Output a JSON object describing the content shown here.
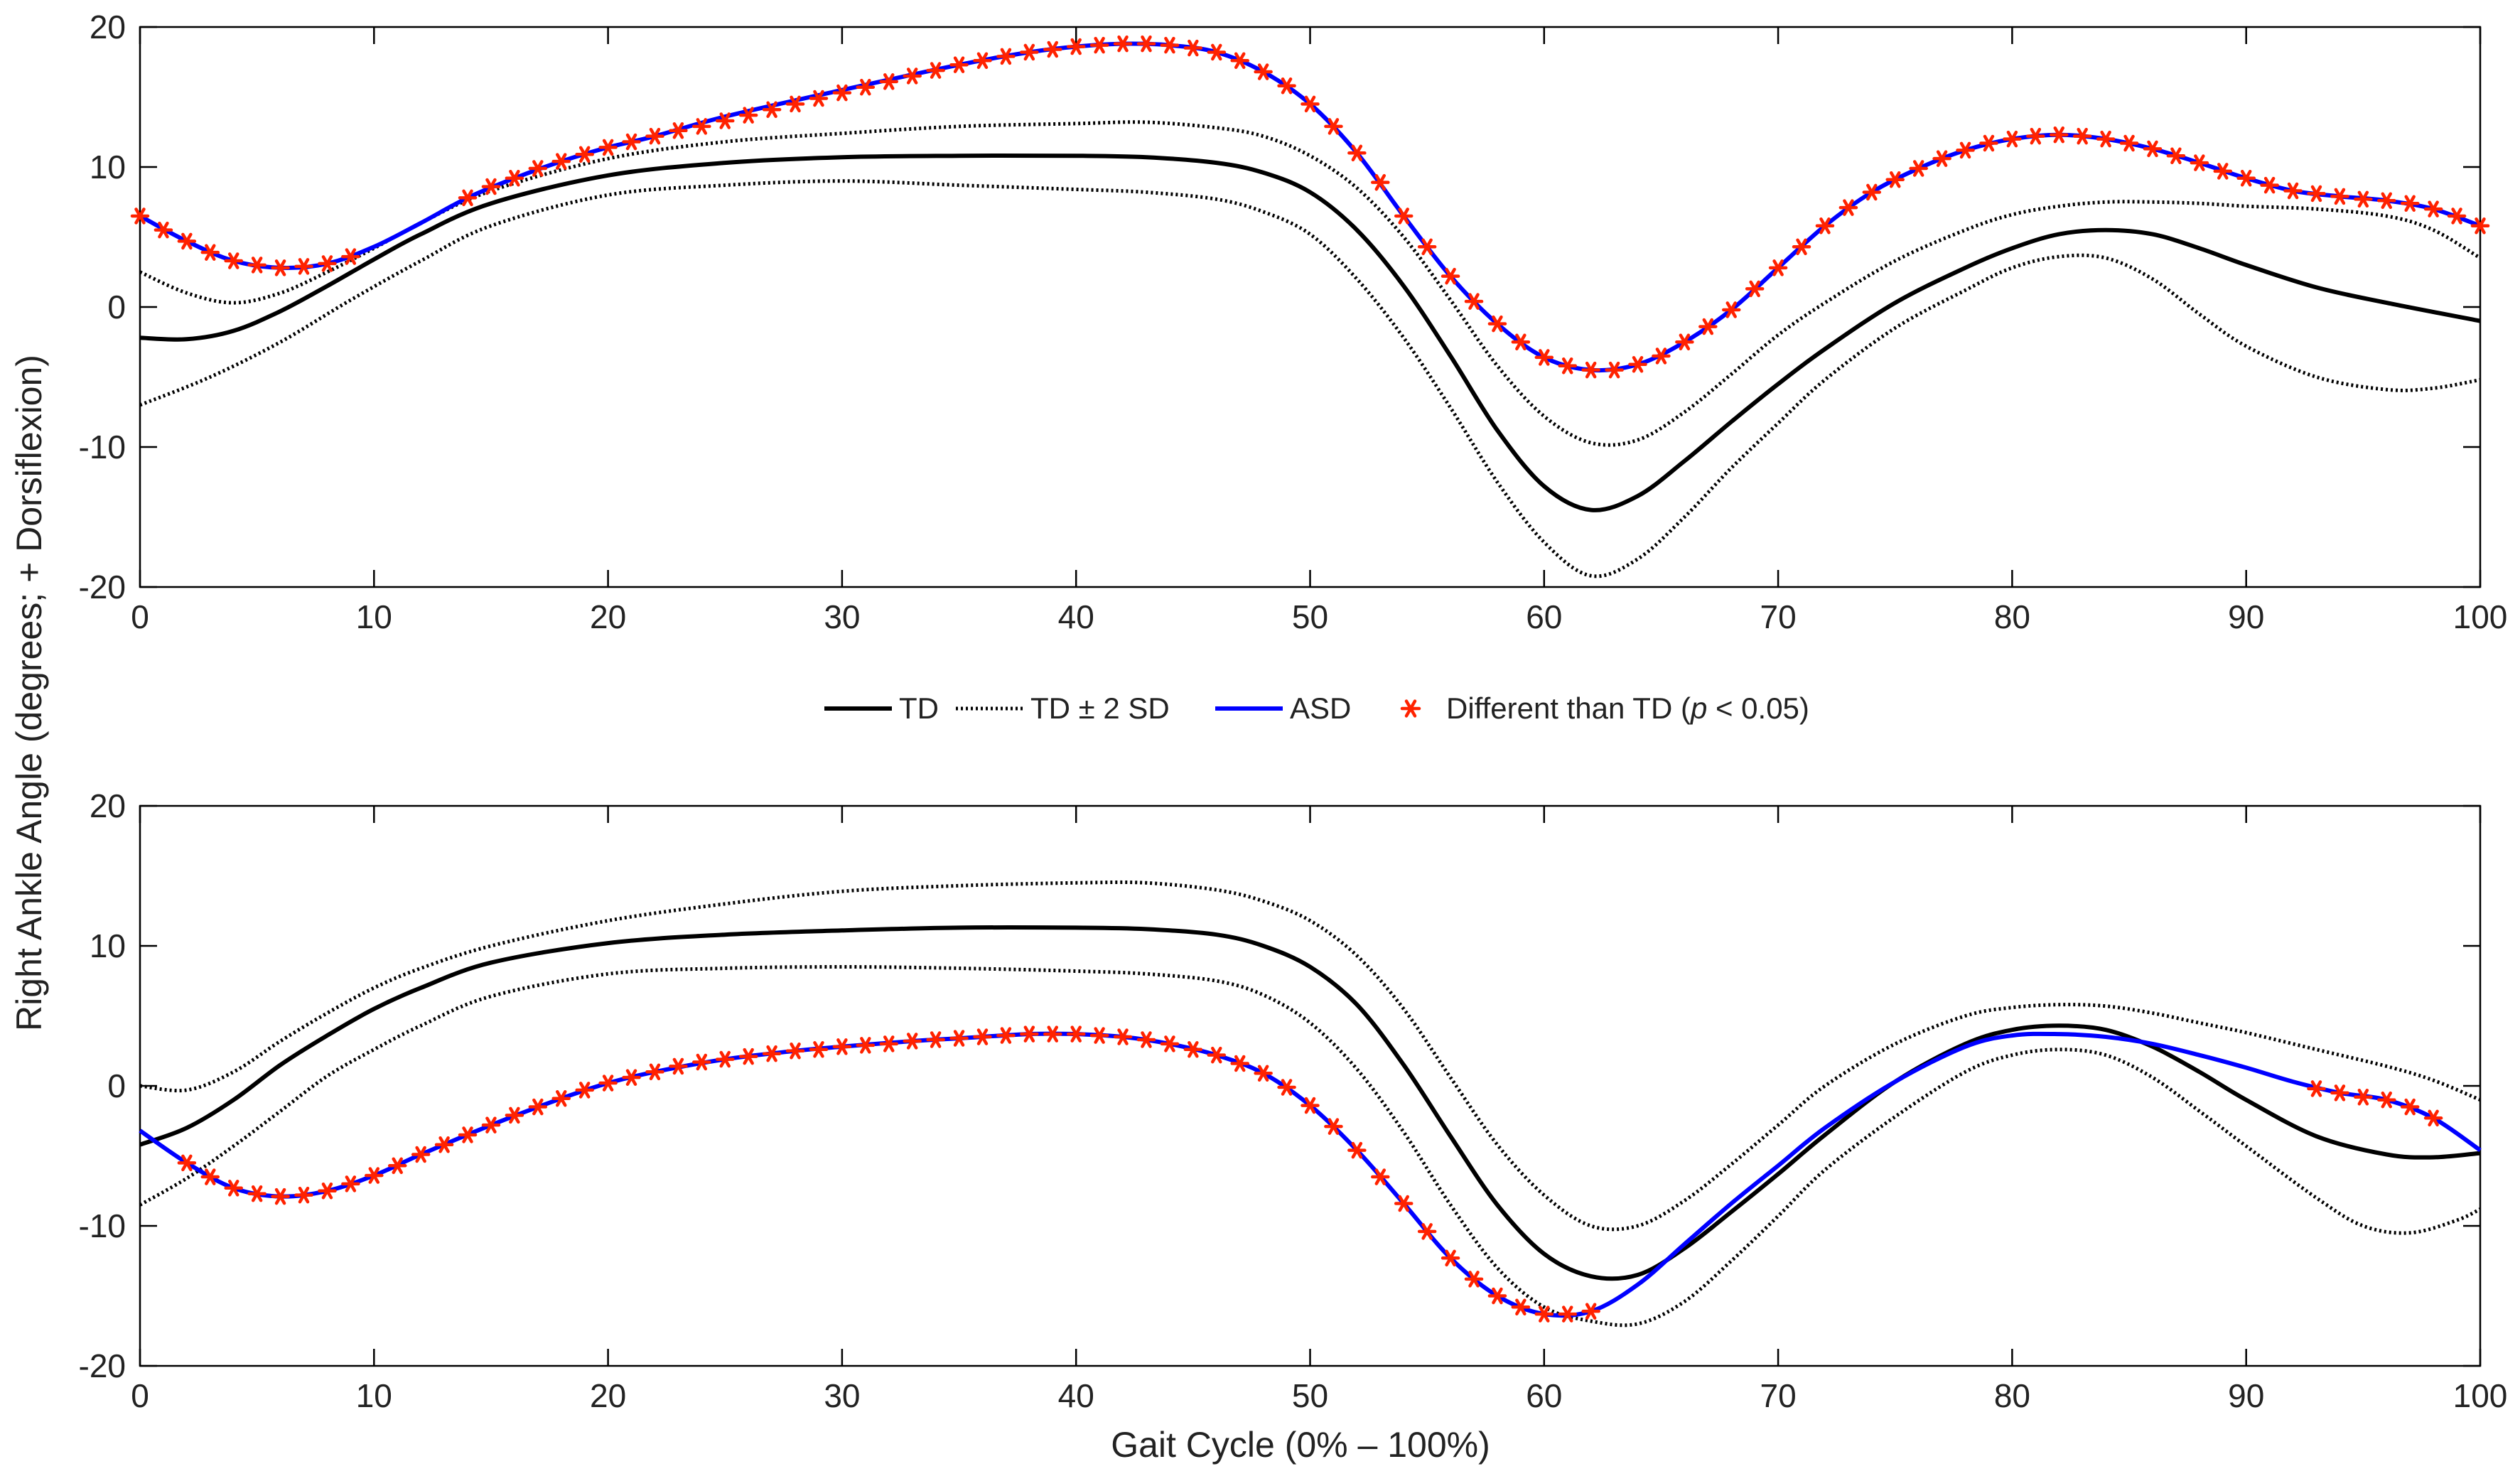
{
  "figure": {
    "ylabel": "Right Ankle Angle (degrees; + Dorsiflexion)",
    "xlabel": "Gait Cycle (0% – 100%)"
  },
  "legend": {
    "td_label": "TD",
    "sd_label": "TD ± 2 SD",
    "asd_label": "ASD",
    "diff_prefix": "Different than TD (",
    "diff_p": "p",
    "diff_suffix": " < 0.05)"
  },
  "colors": {
    "td": "#000000",
    "asd": "#0000ff",
    "marker": "#ff2200"
  },
  "chart_data": [
    {
      "type": "line",
      "panel": "top",
      "xlim": [
        0,
        100
      ],
      "ylim": [
        -20,
        20
      ],
      "xticks": [
        0,
        10,
        20,
        30,
        40,
        50,
        60,
        70,
        80,
        90,
        100
      ],
      "yticks": [
        -20,
        -10,
        0,
        10,
        20
      ],
      "series": [
        {
          "name": "TD",
          "style": "solid",
          "x": [
            0,
            2,
            4,
            6,
            8,
            10,
            12,
            15,
            20,
            25,
            30,
            35,
            40,
            43,
            46,
            48,
            50,
            52,
            54,
            56,
            58,
            60,
            62,
            64,
            66,
            68,
            70,
            72,
            75,
            78,
            80,
            82,
            84,
            86,
            88,
            90,
            93,
            96,
            100
          ],
          "y": [
            -2.2,
            -2.3,
            -1.7,
            -0.3,
            1.5,
            3.4,
            5.2,
            7.4,
            9.4,
            10.3,
            10.7,
            10.8,
            10.8,
            10.7,
            10.3,
            9.6,
            8.2,
            5.5,
            1.5,
            -3.5,
            -8.8,
            -12.8,
            -14.5,
            -13.5,
            -11.0,
            -8.2,
            -5.5,
            -3.0,
            0.3,
            2.8,
            4.2,
            5.2,
            5.5,
            5.2,
            4.2,
            3.0,
            1.4,
            0.3,
            -1.0
          ]
        },
        {
          "name": "TD + 2 SD",
          "style": "dotted",
          "x": [
            0,
            2,
            4,
            6,
            8,
            10,
            12,
            15,
            20,
            25,
            30,
            35,
            40,
            43,
            46,
            48,
            50,
            52,
            54,
            56,
            58,
            60,
            62,
            64,
            66,
            68,
            70,
            72,
            75,
            78,
            80,
            82,
            84,
            86,
            88,
            90,
            93,
            96,
            98,
            100
          ],
          "y": [
            2.5,
            1.0,
            0.3,
            1.0,
            2.5,
            4.2,
            6.0,
            8.3,
            10.6,
            11.8,
            12.4,
            12.9,
            13.1,
            13.2,
            12.8,
            12.2,
            10.8,
            8.5,
            5.0,
            0.5,
            -4.2,
            -7.8,
            -9.7,
            -9.5,
            -7.5,
            -4.8,
            -2.0,
            0.3,
            3.3,
            5.5,
            6.6,
            7.2,
            7.5,
            7.5,
            7.4,
            7.2,
            7.0,
            6.5,
            5.5,
            3.5
          ]
        },
        {
          "name": "TD - 2 SD",
          "style": "dotted",
          "x": [
            0,
            3,
            6,
            9,
            12,
            15,
            20,
            25,
            30,
            35,
            40,
            43,
            46,
            48,
            50,
            52,
            54,
            56,
            58,
            60,
            62,
            64,
            66,
            68,
            70,
            72,
            75,
            78,
            80,
            82,
            84,
            86,
            88,
            90,
            93,
            96,
            98,
            100
          ],
          "y": [
            -7.0,
            -5.0,
            -2.5,
            0.5,
            3.3,
            5.8,
            8.0,
            8.7,
            9.0,
            8.7,
            8.4,
            8.2,
            7.7,
            6.8,
            5.2,
            2.0,
            -2.2,
            -7.2,
            -12.5,
            -16.8,
            -19.2,
            -18.0,
            -15.0,
            -11.5,
            -8.3,
            -5.2,
            -1.5,
            1.2,
            2.8,
            3.6,
            3.5,
            2.0,
            -0.5,
            -2.8,
            -5.0,
            -5.9,
            -5.8,
            -5.2
          ]
        },
        {
          "name": "ASD",
          "style": "solid",
          "x": [
            0,
            2,
            4,
            6,
            8,
            10,
            12,
            14,
            16,
            18,
            20,
            22,
            25,
            30,
            35,
            38,
            40,
            42,
            44,
            46,
            48,
            50,
            52,
            54,
            56,
            58,
            60,
            62,
            64,
            66,
            68,
            70,
            72,
            74,
            76,
            78,
            80,
            82,
            84,
            86,
            88,
            90,
            92,
            94,
            96,
            98,
            100
          ],
          "y": [
            6.5,
            4.7,
            3.3,
            2.8,
            3.1,
            4.3,
            6.0,
            7.8,
            9.2,
            10.4,
            11.4,
            12.2,
            13.6,
            15.5,
            17.3,
            18.2,
            18.6,
            18.8,
            18.7,
            18.2,
            16.8,
            14.5,
            11.0,
            6.5,
            2.2,
            -1.2,
            -3.6,
            -4.5,
            -4.1,
            -2.5,
            -0.2,
            2.8,
            5.8,
            8.2,
            9.9,
            11.2,
            12.0,
            12.3,
            12.0,
            11.3,
            10.3,
            9.2,
            8.3,
            7.9,
            7.6,
            7.0,
            5.8
          ]
        },
        {
          "name": "Different than TD (p < 0.05)",
          "style": "marker",
          "x": [
            0,
            1,
            2,
            3,
            4,
            5,
            6,
            7,
            8,
            9,
            14,
            15,
            16,
            17,
            18,
            19,
            20,
            21,
            22,
            23,
            24,
            25,
            26,
            27,
            28,
            29,
            30,
            31,
            32,
            33,
            34,
            35,
            36,
            37,
            38,
            39,
            40,
            41,
            42,
            43,
            44,
            45,
            46,
            47,
            48,
            49,
            50,
            51,
            52,
            53,
            54,
            55,
            56,
            57,
            58,
            59,
            60,
            61,
            62,
            63,
            64,
            65,
            66,
            67,
            68,
            69,
            70,
            71,
            72,
            73,
            74,
            75,
            76,
            77,
            78,
            79,
            80,
            81,
            82,
            83,
            84,
            85,
            86,
            87,
            88,
            89,
            90,
            91,
            92,
            93,
            94,
            95,
            96,
            97,
            98,
            99,
            100
          ],
          "y": [
            6.5,
            5.5,
            4.7,
            3.9,
            3.3,
            3.0,
            2.8,
            2.9,
            3.1,
            3.6,
            7.8,
            8.6,
            9.2,
            9.9,
            10.4,
            10.9,
            11.4,
            11.8,
            12.2,
            12.6,
            12.9,
            13.3,
            13.7,
            14.1,
            14.5,
            14.9,
            15.3,
            15.7,
            16.1,
            16.5,
            16.9,
            17.3,
            17.6,
            17.9,
            18.2,
            18.4,
            18.6,
            18.7,
            18.8,
            18.8,
            18.7,
            18.5,
            18.2,
            17.6,
            16.8,
            15.8,
            14.5,
            12.9,
            11.0,
            8.9,
            6.5,
            4.3,
            2.2,
            0.4,
            -1.2,
            -2.5,
            -3.6,
            -4.2,
            -4.5,
            -4.5,
            -4.1,
            -3.5,
            -2.5,
            -1.4,
            -0.2,
            1.3,
            2.8,
            4.3,
            5.8,
            7.1,
            8.2,
            9.1,
            9.9,
            10.6,
            11.2,
            11.7,
            12.0,
            12.2,
            12.3,
            12.2,
            12.0,
            11.7,
            11.3,
            10.8,
            10.3,
            9.7,
            9.2,
            8.7,
            8.3,
            8.1,
            7.9,
            7.7,
            7.6,
            7.4,
            7.0,
            6.5,
            5.8
          ]
        }
      ]
    },
    {
      "type": "line",
      "panel": "bottom",
      "xlim": [
        0,
        100
      ],
      "ylim": [
        -20,
        20
      ],
      "xticks": [
        0,
        10,
        20,
        30,
        40,
        50,
        60,
        70,
        80,
        90,
        100
      ],
      "yticks": [
        -20,
        -10,
        0,
        10,
        20
      ],
      "series": [
        {
          "name": "TD",
          "style": "solid",
          "x": [
            0,
            2,
            4,
            6,
            8,
            10,
            12,
            15,
            20,
            25,
            30,
            35,
            40,
            43,
            46,
            48,
            50,
            52,
            54,
            56,
            58,
            60,
            62,
            64,
            66,
            68,
            70,
            72,
            75,
            78,
            80,
            82,
            84,
            86,
            88,
            90,
            93,
            96,
            98,
            100
          ],
          "y": [
            -4.2,
            -3.0,
            -1.0,
            1.5,
            3.6,
            5.5,
            7.0,
            8.8,
            10.2,
            10.8,
            11.1,
            11.3,
            11.3,
            11.2,
            10.8,
            10.0,
            8.5,
            5.8,
            1.5,
            -3.6,
            -8.5,
            -12.0,
            -13.6,
            -13.5,
            -11.6,
            -9.0,
            -6.3,
            -3.5,
            0.3,
            3.0,
            4.0,
            4.3,
            4.0,
            2.8,
            1.0,
            -1.0,
            -3.6,
            -4.9,
            -5.1,
            -4.8
          ]
        },
        {
          "name": "TD + 2 SD",
          "style": "dotted",
          "x": [
            0,
            2,
            4,
            6,
            8,
            10,
            12,
            15,
            20,
            25,
            30,
            35,
            40,
            43,
            46,
            48,
            50,
            52,
            54,
            56,
            58,
            60,
            62,
            64,
            66,
            68,
            70,
            72,
            75,
            78,
            80,
            82,
            84,
            86,
            88,
            90,
            93,
            96,
            98,
            100
          ],
          "y": [
            0.0,
            -0.3,
            1.0,
            3.2,
            5.2,
            7.0,
            8.4,
            10.0,
            11.8,
            13.0,
            13.9,
            14.3,
            14.5,
            14.5,
            14.0,
            13.2,
            11.8,
            9.3,
            5.5,
            0.6,
            -4.2,
            -7.8,
            -10.0,
            -10.0,
            -8.2,
            -5.6,
            -2.8,
            0.0,
            3.0,
            5.0,
            5.6,
            5.8,
            5.7,
            5.2,
            4.5,
            3.8,
            2.6,
            1.4,
            0.4,
            -1.0
          ]
        },
        {
          "name": "TD - 2 SD",
          "style": "dotted",
          "x": [
            0,
            2,
            4,
            6,
            8,
            10,
            12,
            15,
            20,
            25,
            30,
            35,
            40,
            43,
            46,
            48,
            50,
            52,
            54,
            56,
            58,
            60,
            62,
            64,
            66,
            68,
            70,
            72,
            75,
            78,
            80,
            82,
            84,
            86,
            88,
            90,
            93,
            95,
            97,
            99,
            100
          ],
          "y": [
            -8.5,
            -6.6,
            -4.3,
            -1.8,
            0.7,
            2.6,
            4.3,
            6.4,
            8.0,
            8.4,
            8.5,
            8.4,
            8.2,
            8.0,
            7.5,
            6.5,
            4.5,
            1.2,
            -3.3,
            -8.5,
            -13.0,
            -15.8,
            -16.8,
            -17.0,
            -15.4,
            -12.5,
            -9.3,
            -6.0,
            -2.2,
            1.0,
            2.2,
            2.6,
            2.2,
            0.6,
            -1.8,
            -4.3,
            -8.0,
            -10.0,
            -10.5,
            -9.6,
            -8.8
          ]
        },
        {
          "name": "ASD",
          "style": "solid",
          "x": [
            0,
            2,
            4,
            6,
            8,
            10,
            12,
            15,
            18,
            20,
            22,
            25,
            28,
            30,
            33,
            35,
            38,
            40,
            42,
            44,
            46,
            48,
            50,
            52,
            54,
            56,
            58,
            60,
            62,
            64,
            66,
            68,
            70,
            72,
            75,
            78,
            80,
            82,
            84,
            86,
            88,
            90,
            92,
            94,
            96,
            98,
            100
          ],
          "y": [
            -3.2,
            -5.5,
            -7.3,
            -7.9,
            -7.5,
            -6.4,
            -4.9,
            -2.8,
            -0.9,
            0.2,
            1.0,
            1.9,
            2.5,
            2.8,
            3.2,
            3.4,
            3.7,
            3.7,
            3.5,
            3.0,
            2.2,
            0.9,
            -1.4,
            -4.6,
            -8.4,
            -12.3,
            -15.0,
            -16.3,
            -16.1,
            -14.2,
            -11.3,
            -8.4,
            -5.7,
            -3.0,
            0.3,
            2.8,
            3.6,
            3.7,
            3.5,
            3.0,
            2.2,
            1.3,
            0.3,
            -0.5,
            -1.0,
            -2.3,
            -4.6
          ]
        },
        {
          "name": "Different than TD (p < 0.05)",
          "style": "marker",
          "x": [
            2,
            3,
            4,
            5,
            6,
            7,
            8,
            9,
            10,
            11,
            12,
            13,
            14,
            15,
            16,
            17,
            18,
            19,
            20,
            21,
            22,
            23,
            24,
            25,
            26,
            27,
            28,
            29,
            30,
            31,
            32,
            33,
            34,
            35,
            36,
            37,
            38,
            39,
            40,
            41,
            42,
            43,
            44,
            45,
            46,
            47,
            48,
            49,
            50,
            51,
            52,
            53,
            54,
            55,
            56,
            57,
            58,
            59,
            60,
            61,
            62,
            93,
            94,
            95,
            96,
            97,
            98
          ],
          "y": [
            -5.5,
            -6.5,
            -7.3,
            -7.7,
            -7.9,
            -7.8,
            -7.5,
            -7.0,
            -6.4,
            -5.7,
            -4.9,
            -4.2,
            -3.5,
            -2.8,
            -2.1,
            -1.5,
            -0.9,
            -0.3,
            0.2,
            0.6,
            1.0,
            1.4,
            1.7,
            1.9,
            2.1,
            2.3,
            2.5,
            2.6,
            2.8,
            2.9,
            3.0,
            3.2,
            3.3,
            3.4,
            3.5,
            3.6,
            3.7,
            3.7,
            3.7,
            3.6,
            3.5,
            3.3,
            3.0,
            2.6,
            2.2,
            1.6,
            0.9,
            -0.1,
            -1.4,
            -2.9,
            -4.6,
            -6.5,
            -8.4,
            -10.4,
            -12.3,
            -13.8,
            -15.0,
            -15.8,
            -16.3,
            -16.3,
            -16.1,
            -0.2,
            -0.5,
            -0.8,
            -1.0,
            -1.5,
            -2.3
          ]
        }
      ]
    }
  ]
}
